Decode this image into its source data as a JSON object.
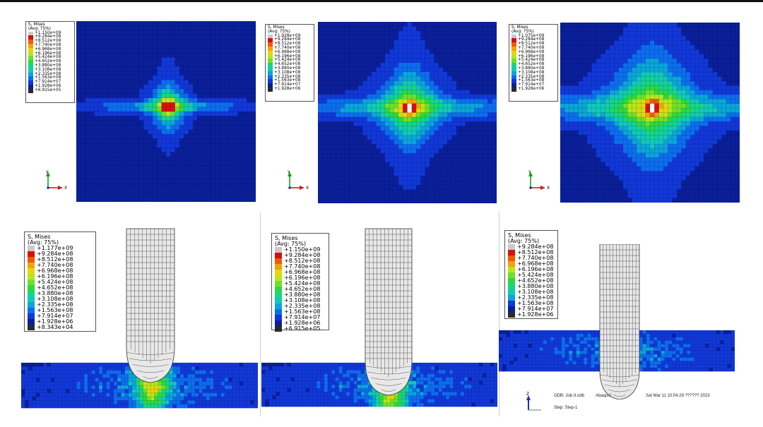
{
  "colors": {
    "contour": [
      "#2a2a2a",
      "#0a1f9a",
      "#1138d8",
      "#0c6eee",
      "#0aa6d8",
      "#12c9b8",
      "#16d684",
      "#2bd940",
      "#6ee02a",
      "#b9e61a",
      "#e3d70e",
      "#f3a10c",
      "#ee5a08",
      "#d8100c",
      "#c9c9c9"
    ],
    "background": "#ffffff"
  },
  "figures": [
    {
      "legend": {
        "title": "S, Mises",
        "subtitle": "(Avg: 75%)",
        "values": [
          "+1.150e+09",
          "+9.284e+08",
          "+8.512e+08",
          "+7.740e+08",
          "+6.968e+08",
          "+6.196e+08",
          "+5.424e+08",
          "+4.652e+08",
          "+3.880e+08",
          "+3.108e+08",
          "+2.335e+08",
          "+1.563e+08",
          "+7.914e+07",
          "+1.928e+06",
          "+6.915e+05"
        ]
      },
      "axis_icon": {
        "y": "Y",
        "x": "X"
      }
    },
    {
      "legend": {
        "title": "S, Mises",
        "subtitle": "(Avg: 75%)",
        "values": [
          "+1.928e+09",
          "+9.284e+08",
          "+8.512e+08",
          "+7.740e+08",
          "+6.968e+08",
          "+6.196e+08",
          "+5.424e+08",
          "+4.652e+08",
          "+3.880e+08",
          "+3.108e+08",
          "+2.335e+08",
          "+1.563e+08",
          "+7.914e+07",
          "+1.928e+06"
        ]
      },
      "axis_icon": {
        "y": "Y",
        "x": "X"
      }
    },
    {
      "legend": {
        "title": "S, Mises",
        "subtitle": "(Avg: 75%)",
        "values": [
          "+1.075e+09",
          "+9.284e+08",
          "+8.512e+08",
          "+7.740e+08",
          "+6.968e+08",
          "+6.196e+08",
          "+5.424e+08",
          "+4.652e+08",
          "+3.880e+08",
          "+3.108e+08",
          "+2.335e+08",
          "+1.563e+08",
          "+7.914e+07",
          "+1.928e+06"
        ]
      },
      "axis_icon": {
        "y": "Y",
        "x": "X"
      }
    },
    {
      "legend": {
        "title": "S, Mises",
        "subtitle": "(Avg: 75%)",
        "values": [
          "+1.177e+09",
          "+9.284e+08",
          "+8.512e+08",
          "+7.740e+08",
          "+6.968e+08",
          "+6.196e+08",
          "+5.424e+08",
          "+4.652e+08",
          "+3.880e+08",
          "+3.108e+08",
          "+2.335e+08",
          "+1.563e+08",
          "+7.914e+07",
          "+1.928e+06",
          "+8.343e+04"
        ]
      }
    },
    {
      "legend": {
        "title": "S, Mises",
        "subtitle": "(Avg: 75%)",
        "values": [
          "+1.150e+09",
          "+9.284e+08",
          "+8.512e+08",
          "+7.740e+08",
          "+6.968e+08",
          "+6.196e+08",
          "+5.424e+08",
          "+4.652e+08",
          "+3.880e+08",
          "+3.108e+08",
          "+2.335e+08",
          "+1.563e+08",
          "+7.914e+07",
          "+1.928e+06",
          "+6.915e+05"
        ]
      }
    },
    {
      "legend": {
        "title": "S, Mises",
        "subtitle": "(Avg: 75%)",
        "values": [
          "+9.284e+08",
          "+8.512e+08",
          "+7.740e+08",
          "+6.968e+08",
          "+6.196e+08",
          "+5.424e+08",
          "+4.652e+08",
          "+3.880e+08",
          "+3.108e+08",
          "+2.335e+08",
          "+1.563e+08",
          "+7.914e+07",
          "+1.928e+06"
        ]
      },
      "info": {
        "odb": "ODB: Job-3.odb",
        "solver": "Abaqus/",
        "date": "Sat Mar 11 10:04:29 ?????? 2023",
        "step": "Step: Step-1"
      },
      "axis_icon": {
        "z": "Z"
      }
    }
  ]
}
